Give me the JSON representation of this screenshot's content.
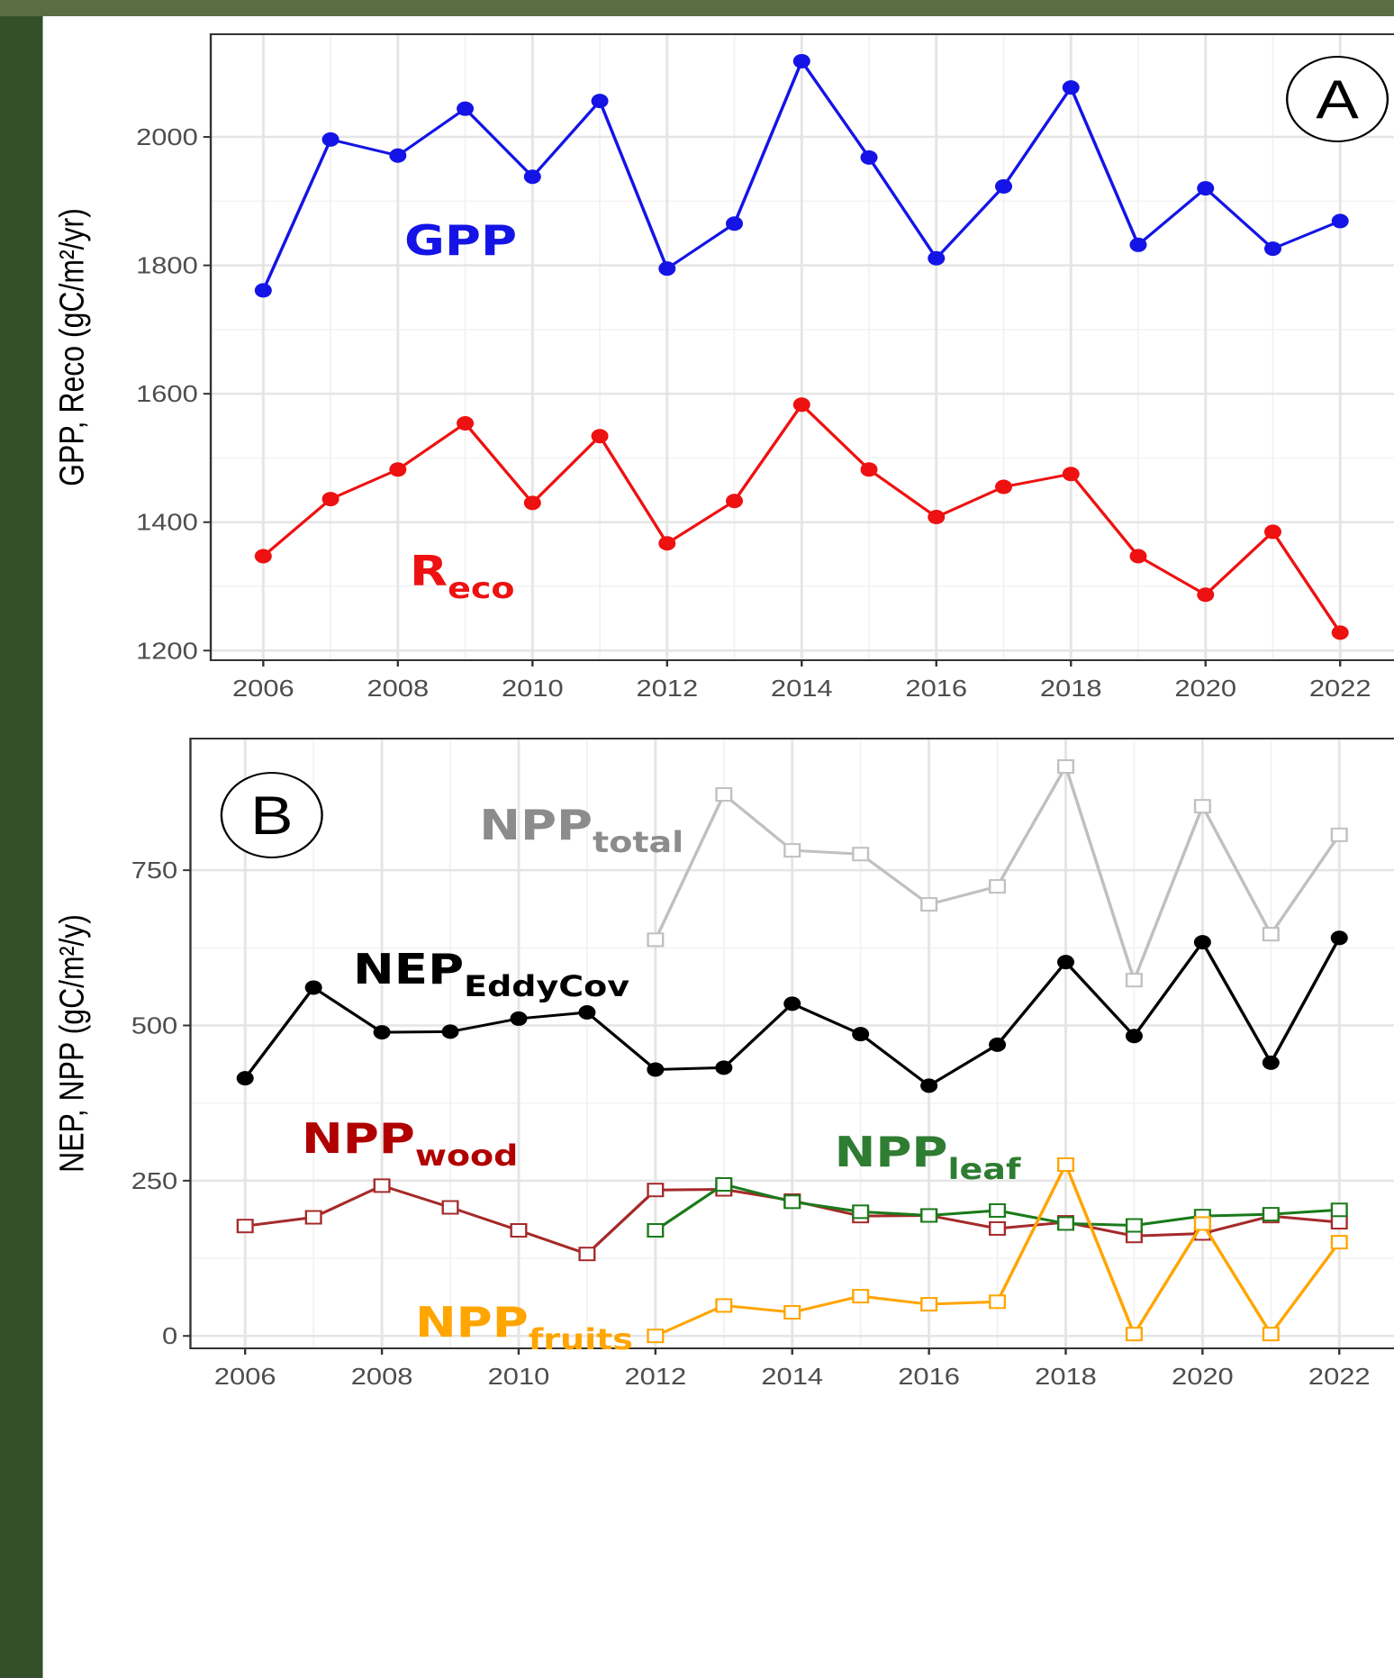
{
  "chart_data": [
    {
      "type": "line",
      "panel": "A",
      "ylabel": "GPP, Reco (gC/m²/yr)",
      "x": [
        2006,
        2007,
        2008,
        2009,
        2010,
        2011,
        2012,
        2013,
        2014,
        2015,
        2016,
        2017,
        2018,
        2019,
        2020,
        2021,
        2022
      ],
      "xlim": [
        2005.22,
        2022.8
      ],
      "xticks": [
        2006,
        2008,
        2010,
        2012,
        2014,
        2016,
        2018,
        2020,
        2022
      ],
      "ylim": [
        1185,
        2160
      ],
      "yticks": [
        1200,
        1400,
        1600,
        1800,
        2000
      ],
      "grid": true,
      "annotations": [
        {
          "text": "GPP",
          "color": "#1414e6"
        },
        {
          "text": "R",
          "sub": "eco",
          "color": "#ee1111"
        }
      ],
      "series": [
        {
          "name": "GPP",
          "color": "#1414e6",
          "marker": "circle",
          "values": [
            1761,
            1996,
            1971,
            2044,
            1938,
            2056,
            1795,
            1865,
            2118,
            1968,
            1811,
            1923,
            2077,
            1832,
            1920,
            1826,
            1869
          ]
        },
        {
          "name": "Reco",
          "color": "#ee1111",
          "marker": "circle",
          "values": [
            1347,
            1436,
            1482,
            1554,
            1430,
            1534,
            1367,
            1433,
            1583,
            1482,
            1408,
            1455,
            1475,
            1347,
            1287,
            1385,
            1228
          ]
        }
      ]
    },
    {
      "type": "line",
      "panel": "B",
      "ylabel": "NEP, NPP (gC/m²/y)",
      "x": [
        2006,
        2007,
        2008,
        2009,
        2010,
        2011,
        2012,
        2013,
        2014,
        2015,
        2016,
        2017,
        2018,
        2019,
        2020,
        2021,
        2022
      ],
      "xlim": [
        2005.2,
        2022.8
      ],
      "xticks": [
        2006,
        2008,
        2010,
        2012,
        2014,
        2016,
        2018,
        2020,
        2022
      ],
      "ylim": [
        -20,
        962
      ],
      "yticks": [
        0,
        250,
        500,
        750
      ],
      "grid": true,
      "annotations": [
        {
          "text": "NPP",
          "sub": "total",
          "color": "#8c8c8c"
        },
        {
          "text": "NEP",
          "sub": "EddyCov",
          "color": "#000000"
        },
        {
          "text": "NPP",
          "sub": "wood",
          "color": "#b00000"
        },
        {
          "text": "NPP",
          "sub": "leaf",
          "color": "#2e7d32"
        },
        {
          "text": "NPP",
          "sub": "fruits",
          "color": "#ffa500"
        }
      ],
      "series": [
        {
          "name": "NPPtotal",
          "color": "#c0c0c0",
          "marker": "square",
          "values": [
            null,
            null,
            null,
            null,
            null,
            null,
            638,
            872,
            782,
            776,
            695,
            724,
            917,
            573,
            853,
            647,
            807
          ]
        },
        {
          "name": "NEPEddyCov",
          "color": "#000000",
          "marker": "circle",
          "values": [
            415,
            561,
            489,
            490,
            511,
            521,
            429,
            432,
            535,
            486,
            403,
            469,
            602,
            483,
            634,
            440,
            641
          ]
        },
        {
          "name": "NPPwood",
          "color": "#a52a2a",
          "marker": "square",
          "values": [
            177,
            191,
            242,
            207,
            170,
            132,
            235,
            236,
            218,
            193,
            194,
            173,
            183,
            161,
            165,
            193,
            183
          ]
        },
        {
          "name": "NPPleaf",
          "color": "#1a7a1a",
          "marker": "square",
          "values": [
            null,
            null,
            null,
            null,
            null,
            null,
            170,
            244,
            216,
            200,
            194,
            202,
            181,
            178,
            193,
            196,
            203
          ]
        },
        {
          "name": "NPPfruits",
          "color": "#ffa500",
          "marker": "square",
          "values": [
            null,
            null,
            null,
            null,
            null,
            null,
            0,
            49,
            38,
            64,
            51,
            55,
            276,
            3,
            181,
            3,
            151
          ]
        }
      ]
    }
  ]
}
